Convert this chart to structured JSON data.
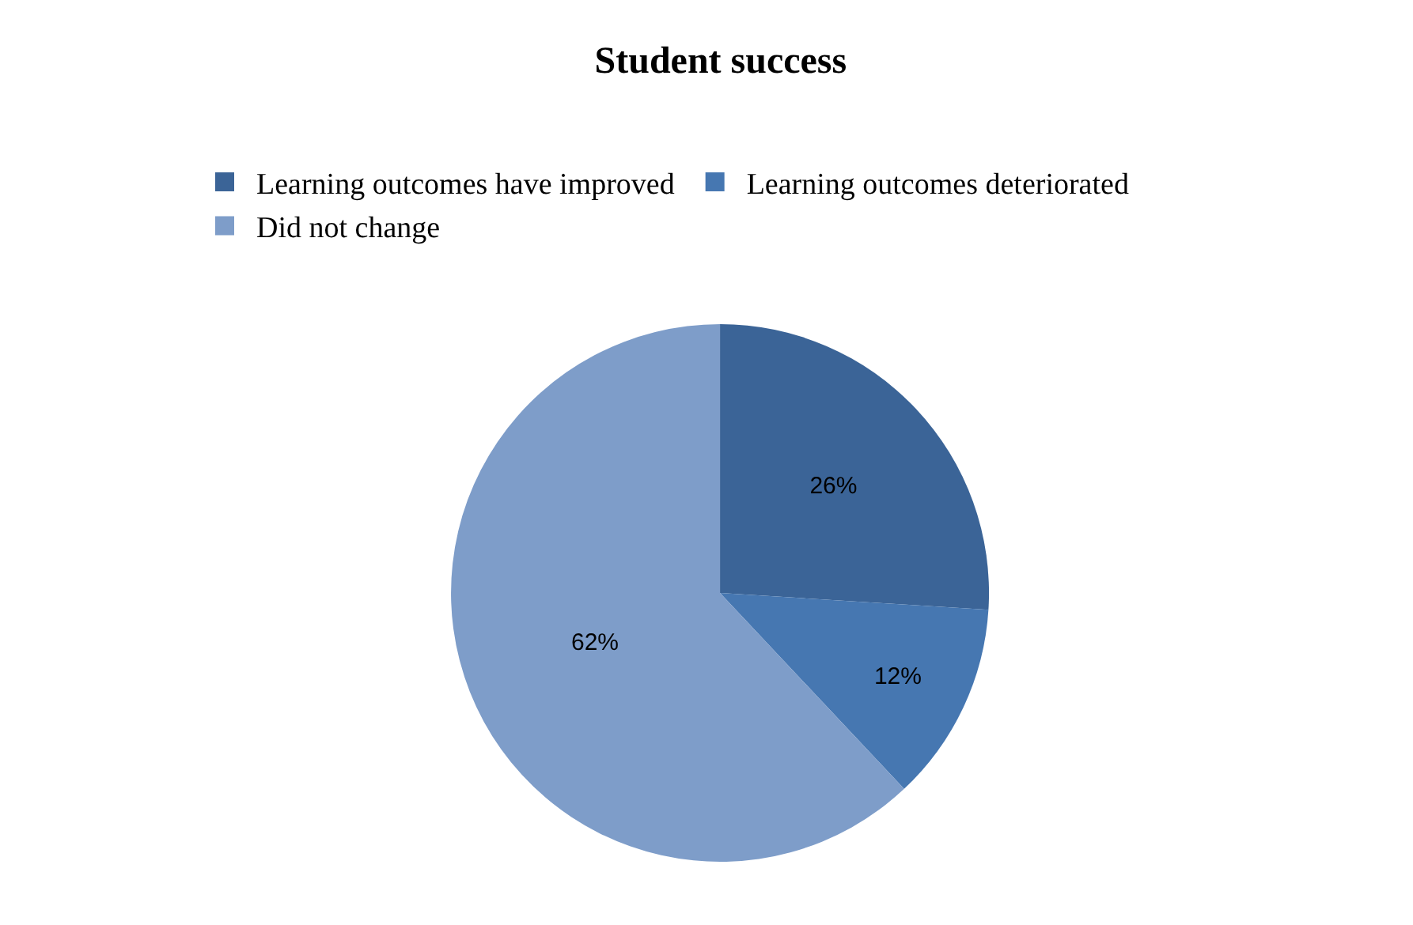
{
  "chart_data": {
    "type": "pie",
    "title": "Student success",
    "categories": [
      "Learning outcomes have improved",
      "Learning outcomes deteriorated",
      "Did not change"
    ],
    "values": [
      26,
      12,
      62
    ],
    "value_labels": [
      "26%",
      "12%",
      "62%"
    ],
    "colors": [
      "#3b6497",
      "#4677b1",
      "#7e9dc9"
    ],
    "legend": "top"
  }
}
